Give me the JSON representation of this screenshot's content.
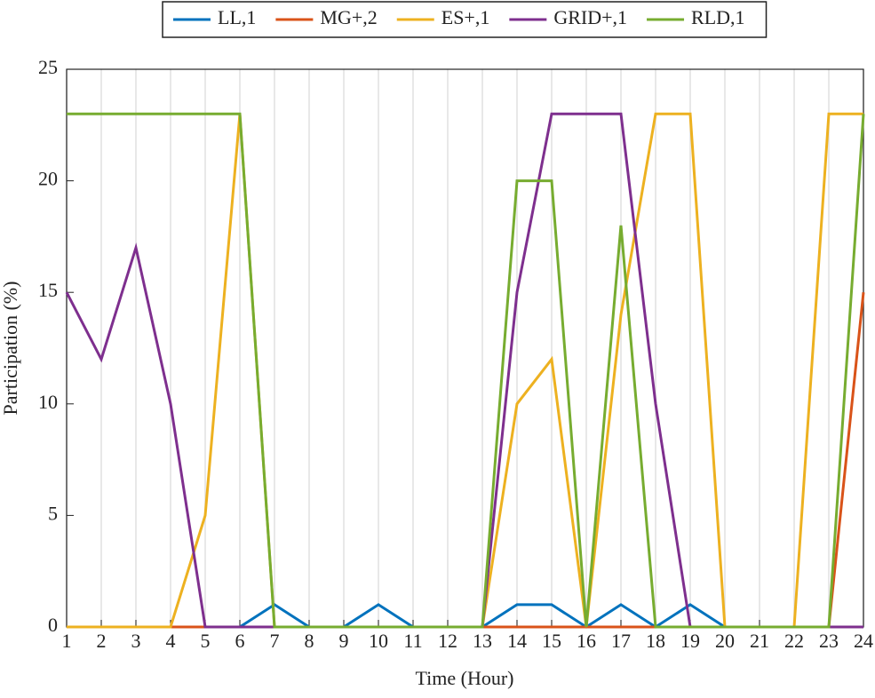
{
  "chart_data": {
    "type": "line",
    "xlabel": "Time (Hour)",
    "ylabel": "Participation (%)",
    "x": [
      1,
      2,
      3,
      4,
      5,
      6,
      7,
      8,
      9,
      10,
      11,
      12,
      13,
      14,
      15,
      16,
      17,
      18,
      19,
      20,
      21,
      22,
      23,
      24
    ],
    "xlim": [
      1,
      24
    ],
    "xticks": [
      1,
      2,
      3,
      4,
      5,
      6,
      7,
      8,
      9,
      10,
      11,
      12,
      13,
      14,
      15,
      16,
      17,
      18,
      19,
      20,
      21,
      22,
      23,
      24
    ],
    "ylim": [
      0,
      25
    ],
    "yticks": [
      0,
      5,
      10,
      15,
      20,
      25
    ],
    "xgrid": true,
    "legend": "top-outside",
    "series": [
      {
        "name": "LL,1",
        "color": "#0072bd",
        "values": [
          0,
          0,
          0,
          0,
          0,
          0,
          1,
          0,
          0,
          1,
          0,
          0,
          0,
          1,
          1,
          0,
          1,
          0,
          1,
          0,
          0,
          0,
          0,
          0
        ]
      },
      {
        "name": "MG+,2",
        "color": "#d95319",
        "values": [
          0,
          0,
          0,
          0,
          0,
          0,
          0,
          0,
          0,
          0,
          0,
          0,
          0,
          0,
          0,
          0,
          0,
          0,
          0,
          0,
          0,
          0,
          0,
          15
        ]
      },
      {
        "name": "ES+,1",
        "color": "#edb120",
        "values": [
          0,
          0,
          0,
          0,
          5,
          23,
          0,
          0,
          0,
          0,
          0,
          0,
          0,
          10,
          12,
          0,
          14,
          23,
          23,
          0,
          0,
          0,
          23,
          23
        ]
      },
      {
        "name": "GRID+,1",
        "color": "#7e2f8e",
        "values": [
          15,
          12,
          17,
          10,
          0,
          0,
          0,
          0,
          0,
          0,
          0,
          0,
          0,
          15,
          23,
          23,
          23,
          10,
          0,
          0,
          0,
          0,
          0,
          0
        ]
      },
      {
        "name": "RLD,1",
        "color": "#77ac30",
        "values": [
          23,
          23,
          23,
          23,
          23,
          23,
          0,
          0,
          0,
          0,
          0,
          0,
          0,
          20,
          20,
          0,
          18,
          0,
          0,
          0,
          0,
          0,
          0,
          23
        ]
      }
    ]
  }
}
